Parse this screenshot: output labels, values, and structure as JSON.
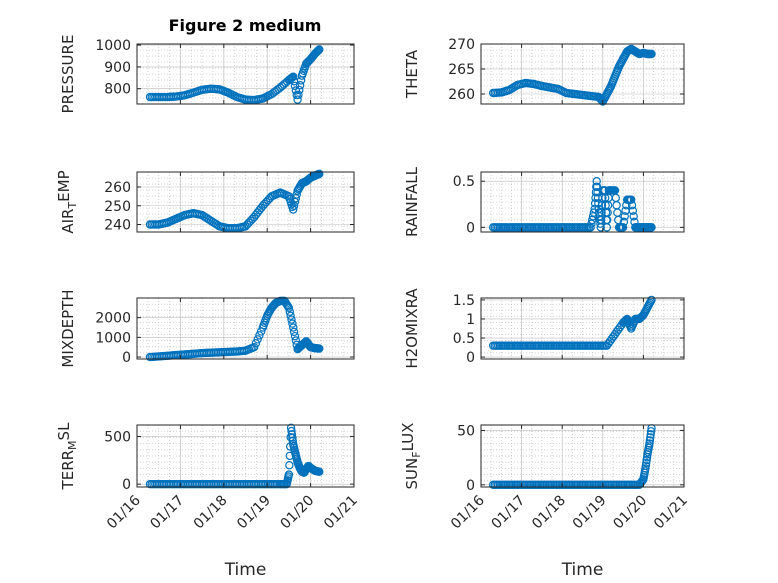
{
  "figure": {
    "title": "Figure 2 medium"
  },
  "colors": {
    "marker": "#0072BD",
    "axis": "#262626",
    "grid": "#c8c8c8"
  },
  "chart_data": [
    {
      "type": "scatter",
      "ylabel": "PRESSURE",
      "xlabel": "",
      "xlim": [
        0,
        5
      ],
      "ylim": [
        730,
        1005
      ],
      "yticks": [
        800,
        900,
        1000
      ],
      "yticklabels": [
        "800",
        "900",
        "1000"
      ],
      "xticklabels": [],
      "grid": true,
      "x": [
        0.3,
        0.5,
        0.7,
        0.9,
        1.1,
        1.3,
        1.5,
        1.7,
        1.9,
        2.1,
        2.3,
        2.5,
        2.7,
        2.9,
        3.1,
        3.3,
        3.5,
        3.6,
        3.7,
        3.8,
        3.9,
        4.0,
        4.1,
        4.2
      ],
      "y": [
        762,
        762,
        762,
        764,
        770,
        782,
        795,
        800,
        797,
        782,
        762,
        750,
        748,
        755,
        775,
        805,
        840,
        855,
        750,
        860,
        915,
        935,
        960,
        980
      ]
    },
    {
      "type": "scatter",
      "ylabel": "THETA",
      "xlabel": "",
      "xlim": [
        0,
        5
      ],
      "ylim": [
        258,
        270
      ],
      "yticks": [
        260,
        265,
        270
      ],
      "yticklabels": [
        "260",
        "265",
        "270"
      ],
      "xticklabels": [],
      "grid": true,
      "x": [
        0.3,
        0.5,
        0.7,
        0.9,
        1.1,
        1.3,
        1.5,
        1.7,
        1.9,
        2.1,
        2.3,
        2.5,
        2.7,
        2.9,
        3.0,
        3.1,
        3.2,
        3.3,
        3.4,
        3.5,
        3.6,
        3.7,
        3.8,
        3.9,
        4.0,
        4.1,
        4.2
      ],
      "y": [
        260.2,
        260.3,
        260.8,
        261.8,
        262.2,
        262.0,
        261.6,
        261.3,
        261.0,
        260.2,
        260.0,
        259.8,
        259.6,
        259.4,
        258.5,
        260.0,
        261.5,
        263.5,
        265.5,
        267.0,
        268.5,
        269.0,
        268.5,
        268.0,
        268.2,
        268.0,
        268.0
      ]
    },
    {
      "type": "scatter",
      "ylabel": "AIR_TEMP",
      "xlabel": "",
      "xlim": [
        0,
        5
      ],
      "ylim": [
        236,
        268
      ],
      "yticks": [
        240,
        250,
        260
      ],
      "yticklabels": [
        "240",
        "250",
        "260"
      ],
      "xticklabels": [],
      "grid": true,
      "x": [
        0.3,
        0.5,
        0.7,
        0.9,
        1.1,
        1.3,
        1.5,
        1.7,
        1.9,
        2.1,
        2.3,
        2.5,
        2.7,
        2.9,
        3.1,
        3.3,
        3.5,
        3.6,
        3.7,
        3.8,
        3.9,
        4.0,
        4.1,
        4.2
      ],
      "y": [
        240,
        240,
        241,
        243,
        245,
        246,
        245,
        242,
        239,
        238,
        238,
        239,
        244,
        250,
        255,
        257,
        255,
        248,
        258,
        262,
        263,
        265,
        266,
        267
      ]
    },
    {
      "type": "scatter",
      "ylabel": "RAINFALL",
      "xlabel": "",
      "xlim": [
        0,
        5
      ],
      "ylim": [
        -0.05,
        0.6
      ],
      "yticks": [
        0,
        0.5
      ],
      "yticklabels": [
        "0",
        "0.5"
      ],
      "xticklabels": [],
      "grid": true,
      "x": [
        0.3,
        0.5,
        0.7,
        0.9,
        1.1,
        1.3,
        1.5,
        1.7,
        1.9,
        2.1,
        2.3,
        2.5,
        2.7,
        2.8,
        2.85,
        2.9,
        2.95,
        3.0,
        3.05,
        3.1,
        3.15,
        3.2,
        3.3,
        3.4,
        3.5,
        3.6,
        3.7,
        3.8,
        3.9,
        4.0,
        4.1,
        4.2
      ],
      "y": [
        0,
        0,
        0,
        0,
        0,
        0,
        0,
        0,
        0,
        0,
        0,
        0,
        0,
        0.2,
        0.5,
        0.2,
        0,
        0.4,
        0.4,
        0,
        0.4,
        0.4,
        0.4,
        0,
        0,
        0.3,
        0.3,
        0,
        0,
        0,
        0,
        0
      ]
    },
    {
      "type": "scatter",
      "ylabel": "MIXDEPTH",
      "xlabel": "",
      "xlim": [
        0,
        5
      ],
      "ylim": [
        -100,
        3000
      ],
      "yticks": [
        0,
        1000,
        2000
      ],
      "yticklabels": [
        "0",
        "1000",
        "2000"
      ],
      "xticklabels": [],
      "grid": true,
      "x": [
        0.3,
        0.5,
        0.7,
        0.9,
        1.1,
        1.3,
        1.5,
        1.7,
        1.9,
        2.1,
        2.3,
        2.5,
        2.7,
        2.9,
        3.0,
        3.1,
        3.2,
        3.3,
        3.4,
        3.5,
        3.6,
        3.7,
        3.8,
        3.9,
        4.0,
        4.1,
        4.2
      ],
      "y": [
        0,
        30,
        60,
        100,
        130,
        160,
        200,
        220,
        240,
        260,
        280,
        320,
        500,
        1500,
        2100,
        2500,
        2750,
        2850,
        2850,
        2500,
        1500,
        400,
        600,
        800,
        500,
        450,
        430
      ]
    },
    {
      "type": "scatter",
      "ylabel": "H2OMIXRA",
      "xlabel": "",
      "xlim": [
        0,
        5
      ],
      "ylim": [
        -0.05,
        1.55
      ],
      "yticks": [
        0,
        0.5,
        1,
        1.5
      ],
      "yticklabels": [
        "0",
        "0.5",
        "1",
        "1.5"
      ],
      "xticklabels": [],
      "grid": true,
      "x": [
        0.3,
        0.5,
        0.7,
        0.9,
        1.1,
        1.3,
        1.5,
        1.7,
        1.9,
        2.1,
        2.3,
        2.5,
        2.7,
        2.9,
        3.1,
        3.3,
        3.5,
        3.6,
        3.7,
        3.8,
        3.9,
        4.0,
        4.1,
        4.2
      ],
      "y": [
        0.3,
        0.3,
        0.3,
        0.3,
        0.3,
        0.3,
        0.3,
        0.3,
        0.3,
        0.3,
        0.3,
        0.3,
        0.3,
        0.3,
        0.3,
        0.6,
        0.9,
        1.0,
        0.75,
        1.0,
        1.0,
        1.1,
        1.3,
        1.5
      ]
    },
    {
      "type": "scatter",
      "ylabel": "TERR_MSL",
      "xlabel": "Time",
      "xlim": [
        0,
        5
      ],
      "ylim": [
        -30,
        620
      ],
      "yticks": [
        0,
        500
      ],
      "yticklabels": [
        "0",
        "500"
      ],
      "xticks": [
        0,
        1,
        2,
        3,
        4,
        5
      ],
      "xticklabels": [
        "01/16",
        "01/17",
        "01/18",
        "01/19",
        "01/20",
        "01/21"
      ],
      "grid": true,
      "x": [
        0.3,
        0.5,
        0.7,
        0.9,
        1.1,
        1.3,
        1.5,
        1.7,
        1.9,
        2.1,
        2.3,
        2.5,
        2.7,
        2.9,
        3.1,
        3.3,
        3.45,
        3.5,
        3.55,
        3.6,
        3.65,
        3.7,
        3.75,
        3.8,
        3.85,
        3.9,
        3.95,
        4.0,
        4.1,
        4.2
      ],
      "y": [
        0,
        0,
        0,
        0,
        0,
        0,
        0,
        0,
        0,
        0,
        0,
        0,
        0,
        0,
        0,
        0,
        0,
        100,
        590,
        420,
        320,
        230,
        170,
        130,
        120,
        160,
        190,
        170,
        140,
        130
      ]
    },
    {
      "type": "scatter",
      "ylabel": "SUN_FLUX",
      "xlabel": "Time",
      "xlim": [
        0,
        5
      ],
      "ylim": [
        -2,
        55
      ],
      "yticks": [
        0,
        50
      ],
      "yticklabels": [
        "0",
        "50"
      ],
      "xticks": [
        0,
        1,
        2,
        3,
        4,
        5
      ],
      "xticklabels": [
        "01/16",
        "01/17",
        "01/18",
        "01/19",
        "01/20",
        "01/21"
      ],
      "grid": true,
      "x": [
        0.3,
        0.5,
        0.7,
        0.9,
        1.1,
        1.3,
        1.5,
        1.7,
        1.9,
        2.1,
        2.3,
        2.5,
        2.7,
        2.9,
        3.1,
        3.3,
        3.5,
        3.7,
        3.9,
        4.0,
        4.05,
        4.1,
        4.15,
        4.2
      ],
      "y": [
        0,
        0,
        0,
        0,
        0,
        0,
        0,
        0,
        0,
        0,
        0,
        0,
        0,
        0,
        0,
        0,
        0,
        0,
        0,
        5,
        15,
        28,
        38,
        52
      ]
    }
  ]
}
